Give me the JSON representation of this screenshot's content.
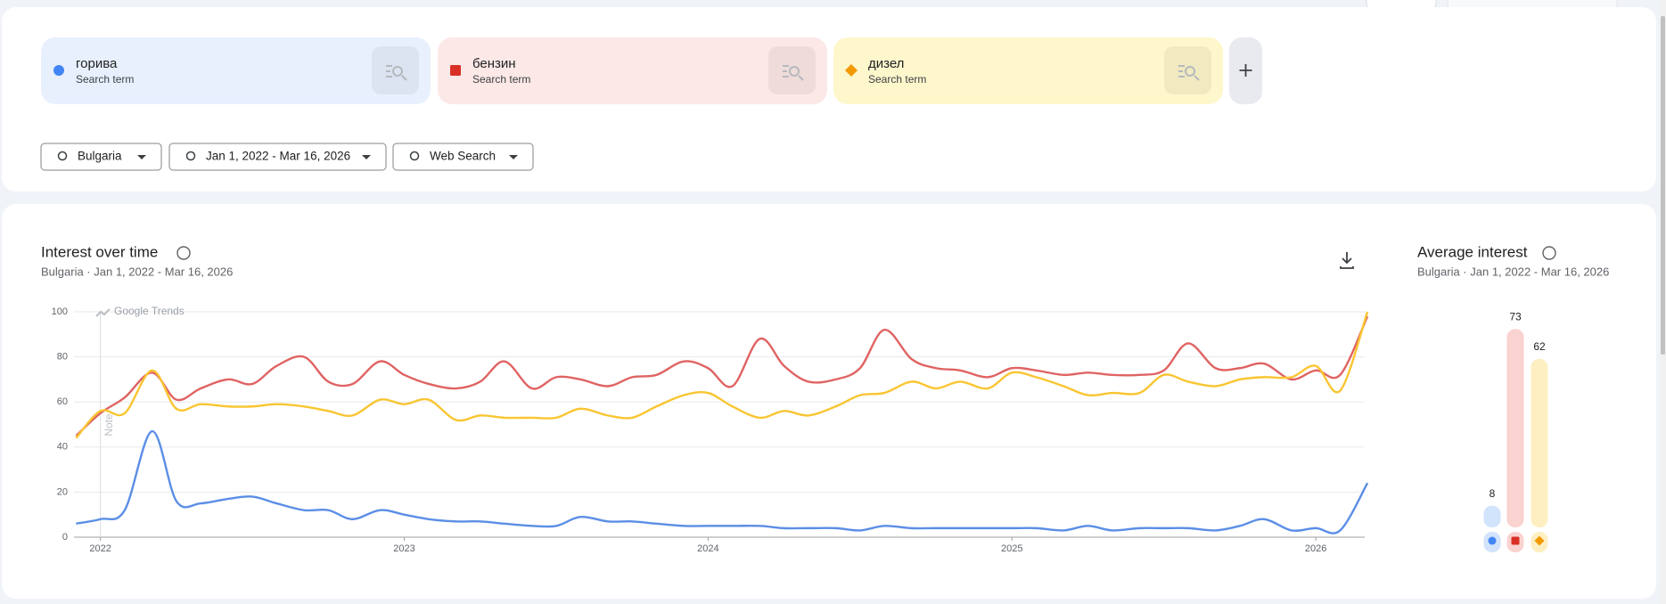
{
  "search_terms": [
    {
      "label": "горива",
      "sublabel": "Search term",
      "color": "#4285f4"
    },
    {
      "label": "бензин",
      "sublabel": "Search term",
      "color": "#d93025"
    },
    {
      "label": "дизел",
      "sublabel": "Search term",
      "color": "#f29900"
    }
  ],
  "filters": [
    {
      "label": "Bulgaria"
    },
    {
      "label": "Jan 1, 2022 - Mar 16, 2026"
    },
    {
      "label": "Web Search"
    }
  ],
  "chart_data": {
    "type": "line",
    "title": "Interest over time",
    "subtitle": "Bulgaria  ·  Jan 1, 2022 - Mar 16, 2026",
    "watermark": "Google Trends",
    "note": "Note",
    "x": [
      2021.92,
      2022,
      2022.08,
      2022.17,
      2022.25,
      2022.33,
      2022.42,
      2022.5,
      2022.58,
      2022.67,
      2022.75,
      2022.83,
      2022.92,
      2023,
      2023.08,
      2023.17,
      2023.25,
      2023.33,
      2023.42,
      2023.5,
      2023.58,
      2023.67,
      2023.75,
      2023.83,
      2023.92,
      2024,
      2024.08,
      2024.17,
      2024.25,
      2024.33,
      2024.42,
      2024.5,
      2024.58,
      2024.67,
      2024.75,
      2024.83,
      2024.92,
      2025,
      2025.08,
      2025.17,
      2025.25,
      2025.33,
      2025.42,
      2025.5,
      2025.58,
      2025.67,
      2025.75,
      2025.83,
      2025.92,
      2026,
      2026.08,
      2026.17
    ],
    "series": [
      {
        "name": "горива",
        "color": "#5b8ee6",
        "values": [
          6,
          8,
          12,
          47,
          16,
          15,
          17,
          18,
          15,
          12,
          12,
          8,
          12,
          10,
          8,
          7,
          7,
          6,
          5,
          5,
          9,
          7,
          7,
          6,
          5,
          5,
          5,
          5,
          4,
          4,
          4,
          3,
          5,
          4,
          4,
          4,
          4,
          4,
          4,
          3,
          5,
          3,
          4,
          4,
          4,
          3,
          5,
          8,
          3,
          4,
          3,
          24
        ]
      },
      {
        "name": "бензин",
        "color": "#e06363",
        "values": [
          45,
          55,
          62,
          73,
          61,
          66,
          70,
          68,
          76,
          80,
          69,
          68,
          78,
          72,
          68,
          66,
          69,
          78,
          66,
          71,
          70,
          67,
          71,
          72,
          78,
          75,
          67,
          88,
          76,
          69,
          70,
          75,
          92,
          79,
          75,
          74,
          71,
          75,
          74,
          72,
          73,
          72,
          72,
          74,
          86,
          75,
          75,
          77,
          70,
          74,
          72,
          98
        ]
      },
      {
        "name": "дизел",
        "color": "#f9c531",
        "values": [
          44,
          56,
          55,
          74,
          57,
          59,
          58,
          58,
          59,
          58,
          56,
          54,
          61,
          59,
          61,
          52,
          54,
          53,
          53,
          53,
          57,
          54,
          53,
          58,
          63,
          64,
          58,
          53,
          56,
          54,
          58,
          63,
          64,
          69,
          66,
          69,
          66,
          73,
          71,
          67,
          63,
          64,
          64,
          72,
          69,
          67,
          70,
          71,
          71,
          76,
          65,
          100
        ]
      }
    ],
    "xlim": [
      2021.913,
      2026.161
    ],
    "xticks": [
      2022,
      2023,
      2024,
      2025,
      2026
    ],
    "ylim": [
      0,
      100
    ],
    "yticks": [
      0,
      20,
      40,
      60,
      80,
      100
    ],
    "grid": true
  },
  "average_interest": {
    "title": "Average interest",
    "subtitle": "Bulgaria  ·  Jan 1, 2022 - Mar 16, 2026",
    "values": [
      8,
      73,
      62
    ],
    "colors": [
      "#d2e3fc",
      "#fad2cf",
      "#feefc3"
    ],
    "ylim": [
      0,
      100
    ]
  }
}
